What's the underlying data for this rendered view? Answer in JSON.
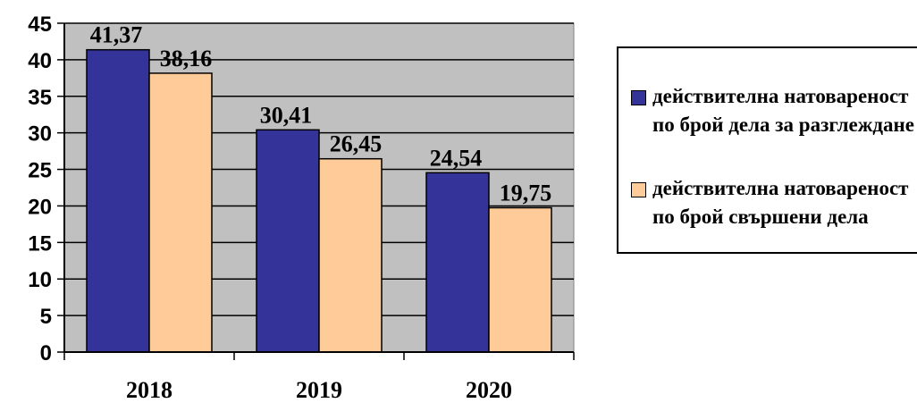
{
  "chart_data": {
    "type": "bar",
    "categories": [
      "2018",
      "2019",
      "2020"
    ],
    "series": [
      {
        "name": "действителна натовареност по брой дела за разглеждане",
        "values": [
          41.37,
          30.41,
          24.54
        ],
        "labels": [
          "41,37",
          "30,41",
          "24,54"
        ],
        "color": "#333399"
      },
      {
        "name": "действителна натовареност по брой свършени дела",
        "values": [
          38.16,
          26.45,
          19.75
        ],
        "labels": [
          "38,16",
          "26,45",
          "19,75"
        ],
        "color": "#FFCC99"
      }
    ],
    "y_ticks": [
      "0",
      "5",
      "10",
      "15",
      "20",
      "25",
      "30",
      "35",
      "40",
      "45"
    ],
    "ylim": [
      0,
      45
    ],
    "plot_background": "#C0C0C0",
    "grid": true,
    "legend_position": "right"
  }
}
